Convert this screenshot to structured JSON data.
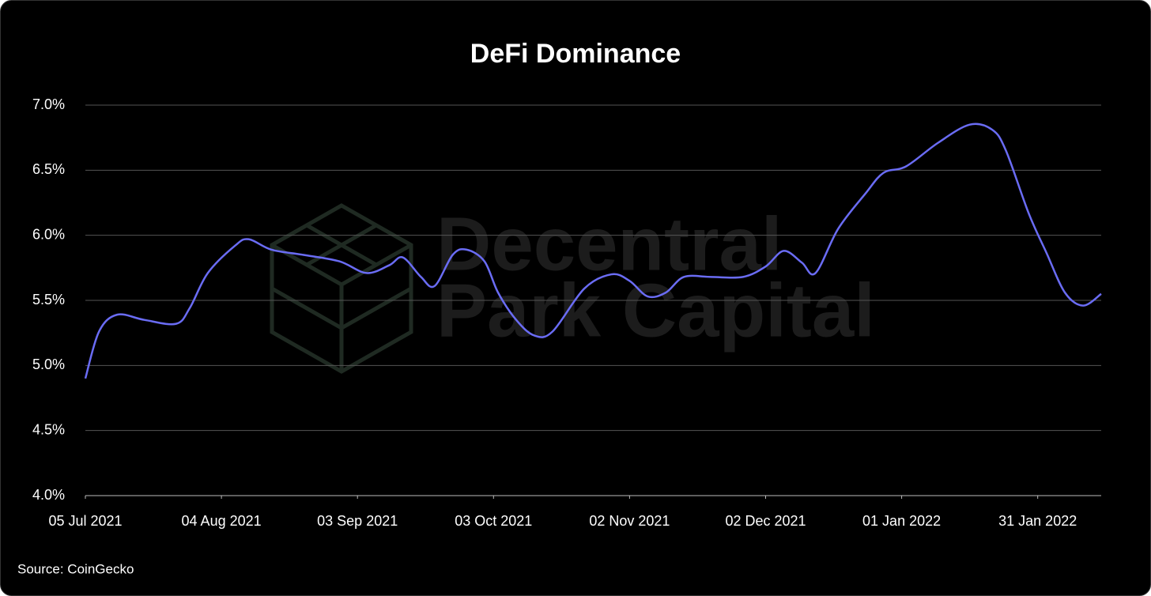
{
  "chart_data": {
    "type": "line",
    "title": "DeFi Dominance",
    "source": "Source: CoinGecko",
    "watermark": [
      "Decentral",
      "Park Capital"
    ],
    "x": [
      "2021-07-05",
      "2021-07-08",
      "2021-07-12",
      "2021-07-18",
      "2021-07-25",
      "2021-07-28",
      "2021-08-01",
      "2021-08-07",
      "2021-08-10",
      "2021-08-15",
      "2021-08-22",
      "2021-08-30",
      "2021-09-05",
      "2021-09-10",
      "2021-09-13",
      "2021-09-17",
      "2021-09-20",
      "2021-09-24",
      "2021-09-27",
      "2021-10-01",
      "2021-10-04",
      "2021-10-08",
      "2021-10-12",
      "2021-10-16",
      "2021-10-23",
      "2021-10-29",
      "2021-11-02",
      "2021-11-06",
      "2021-11-10",
      "2021-11-14",
      "2021-11-20",
      "2021-11-27",
      "2021-12-02",
      "2021-12-06",
      "2021-12-10",
      "2021-12-13",
      "2021-12-18",
      "2021-12-24",
      "2021-12-28",
      "2022-01-02",
      "2022-01-09",
      "2022-01-16",
      "2022-01-21",
      "2022-01-24",
      "2022-01-29",
      "2022-02-02",
      "2022-02-06",
      "2022-02-10",
      "2022-02-14"
    ],
    "series": [
      {
        "name": "DeFi Dominance",
        "color": "#6a6cf4",
        "values": [
          4.9,
          5.26,
          5.39,
          5.35,
          5.32,
          5.44,
          5.71,
          5.92,
          5.97,
          5.89,
          5.85,
          5.8,
          5.71,
          5.77,
          5.83,
          5.68,
          5.61,
          5.85,
          5.89,
          5.8,
          5.56,
          5.35,
          5.23,
          5.26,
          5.59,
          5.7,
          5.65,
          5.53,
          5.56,
          5.68,
          5.68,
          5.68,
          5.76,
          5.88,
          5.79,
          5.71,
          6.05,
          6.32,
          6.48,
          6.53,
          6.71,
          6.85,
          6.81,
          6.65,
          6.17,
          5.86,
          5.56,
          5.46,
          5.55
        ]
      }
    ],
    "xlim": [
      "2021-07-05",
      "2022-02-14"
    ],
    "xticks": [
      {
        "value": "2021-07-05",
        "label": "05 Jul 2021"
      },
      {
        "value": "2021-08-04",
        "label": "04 Aug 2021"
      },
      {
        "value": "2021-09-03",
        "label": "03 Sep 2021"
      },
      {
        "value": "2021-10-03",
        "label": "03 Oct 2021"
      },
      {
        "value": "2021-11-02",
        "label": "02 Nov 2021"
      },
      {
        "value": "2021-12-02",
        "label": "02 Dec 2021"
      },
      {
        "value": "2022-01-01",
        "label": "01 Jan 2022"
      },
      {
        "value": "2022-01-31",
        "label": "31 Jan 2022"
      }
    ],
    "ylim": [
      4.0,
      7.0
    ],
    "yticks": [
      {
        "value": 4.0,
        "label": "4.0%"
      },
      {
        "value": 4.5,
        "label": "4.5%"
      },
      {
        "value": 5.0,
        "label": "5.0%"
      },
      {
        "value": 5.5,
        "label": "5.5%"
      },
      {
        "value": 6.0,
        "label": "6.0%"
      },
      {
        "value": 6.5,
        "label": "6.5%"
      },
      {
        "value": 7.0,
        "label": "7.0%"
      }
    ],
    "grid": true
  }
}
